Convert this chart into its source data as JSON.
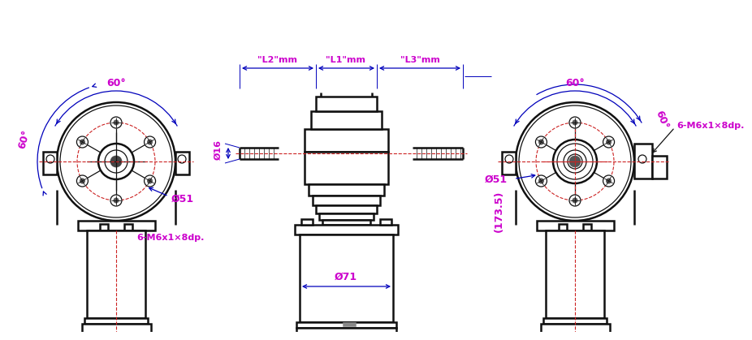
{
  "bg_color": "#ffffff",
  "line_color": "#111111",
  "dim_color": "#0000bb",
  "annot_color": "#cc00cc",
  "red_dash_color": "#cc2222",
  "black_arrow": "#111111",
  "annotations": {
    "left_60_top": "60°",
    "left_60_side": "60°",
    "left_phi51": "Ø51",
    "left_bolt": "6-M6x1×8dp.",
    "front_L2": "\"L2\"mm",
    "front_L1": "\"L1\"mm",
    "front_L3": "\"L3\"mm",
    "front_phi16": "Ø16",
    "front_phi71": "Ø71",
    "front_height": "(173.5)",
    "right_60_top": "60°",
    "right_60_side": "60°",
    "right_phi51": "Ø51",
    "right_bolt": "6-M6x1×8dp."
  }
}
